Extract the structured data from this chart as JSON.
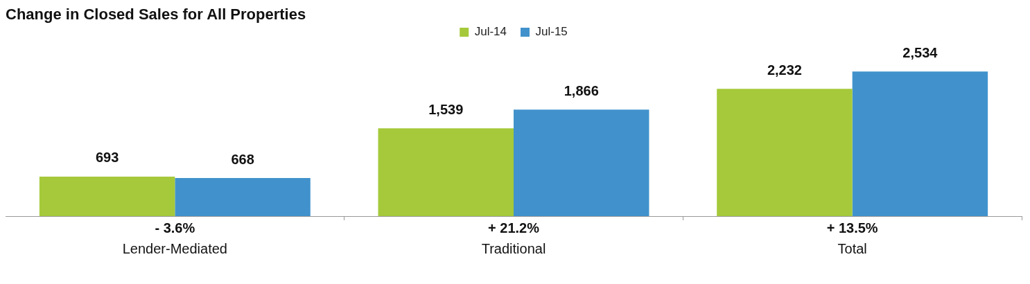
{
  "chart_data": {
    "type": "bar",
    "title": "Change in Closed Sales for All Properties",
    "categories": [
      "Lender-Mediated",
      "Traditional",
      "Total"
    ],
    "series": [
      {
        "name": "Jul-14",
        "color": "#a5c93a",
        "values": [
          693,
          1539,
          2232
        ],
        "value_labels": [
          "693",
          "1,539",
          "2,232"
        ]
      },
      {
        "name": "Jul-15",
        "color": "#4192cc",
        "values": [
          668,
          1866,
          2534
        ],
        "value_labels": [
          "668",
          "1,866",
          "2,534"
        ]
      }
    ],
    "legend": "top",
    "grid": false,
    "annotations": [
      "- 3.6%",
      "+ 21.2%",
      "+ 13.5%"
    ]
  }
}
